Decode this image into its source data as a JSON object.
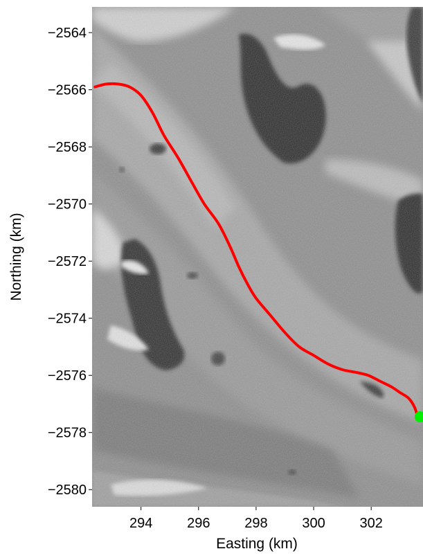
{
  "chart_data": {
    "type": "image",
    "title": "",
    "xlabel": "Easting (km)",
    "ylabel": "Northing (km)",
    "xlim": [
      292.3,
      303.8
    ],
    "ylim": [
      -2580.6,
      -2563.1
    ],
    "xticks": [
      294,
      296,
      298,
      300,
      302
    ],
    "yticks": [
      -2564,
      -2566,
      -2568,
      -2570,
      -2572,
      -2574,
      -2576,
      -2578,
      -2580
    ],
    "x_tick_labels": [
      "294",
      "296",
      "298",
      "300",
      "302"
    ],
    "y_tick_labels": [
      "−2564",
      "−2566",
      "−2568",
      "−2570",
      "−2572",
      "−2574",
      "−2576",
      "−2578",
      "−2580"
    ],
    "background": "grayscale satellite image of glacier surface",
    "series": [
      {
        "type": "line",
        "color": "#ff0000",
        "x": [
          292.4,
          292.8,
          293.2,
          293.6,
          294.0,
          294.4,
          294.8,
          295.3,
          295.8,
          296.2,
          296.7,
          297.1,
          297.4,
          297.7,
          298.0,
          298.5,
          299.0,
          299.5,
          300.0,
          300.5,
          301.0,
          301.5,
          301.9,
          302.3,
          302.7,
          303.0,
          303.3,
          303.5,
          303.6
        ],
        "y": [
          -2565.9,
          -2565.8,
          -2565.8,
          -2565.9,
          -2566.2,
          -2566.8,
          -2567.6,
          -2568.4,
          -2569.3,
          -2570.0,
          -2570.7,
          -2571.5,
          -2572.2,
          -2572.8,
          -2573.3,
          -2573.9,
          -2574.5,
          -2575.0,
          -2575.3,
          -2575.6,
          -2575.8,
          -2575.9,
          -2576.0,
          -2576.2,
          -2576.4,
          -2576.6,
          -2576.8,
          -2577.1,
          -2577.4
        ]
      },
      {
        "type": "point",
        "color": "#00ee00",
        "x": [
          303.7
        ],
        "y": [
          -2577.45
        ]
      }
    ]
  },
  "colors": {
    "track": "#ff0000",
    "endpoint": "#00ee00"
  }
}
